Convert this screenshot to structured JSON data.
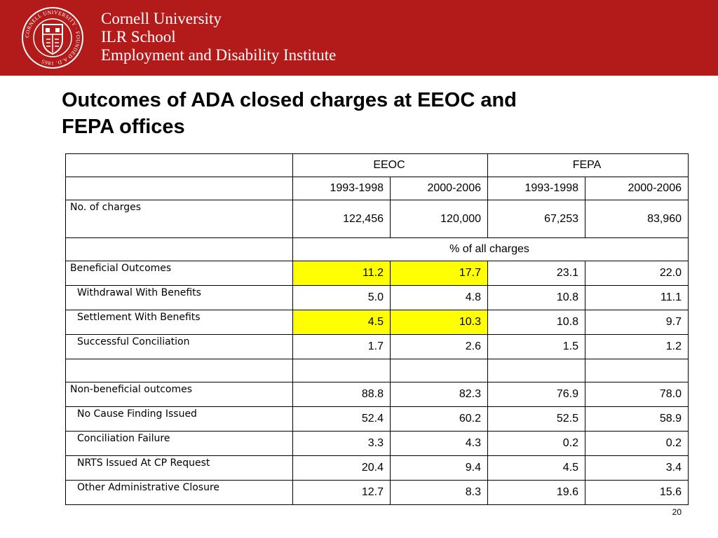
{
  "header": {
    "seal_text": "CORNELL UNIVERSITY · FOUNDED A.D. 1865",
    "org_lines": [
      "Cornell University",
      "ILR School",
      "Employment and Disability Institute"
    ],
    "colors": {
      "banner": "#b31b1b",
      "highlight": "#ffff00"
    }
  },
  "slide": {
    "title_line1": "Outcomes of ADA closed charges at EEOC and",
    "title_line2": "FEPA offices",
    "page_number": "20"
  },
  "table": {
    "groups": [
      "EEOC",
      "FEPA"
    ],
    "periods": [
      "1993-1998",
      "2000-2006",
      "1993-1998",
      "2000-2006"
    ],
    "charges": {
      "label": "No. of charges",
      "values": [
        "122,456",
        "120,000",
        "67,253",
        "83,960"
      ]
    },
    "percent_header": "% of all charges",
    "beneficial": [
      {
        "label": "Beneficial Outcomes",
        "values": [
          "11.2",
          "17.7",
          "23.1",
          "22.0"
        ]
      },
      {
        "label": "Withdrawal With Benefits",
        "values": [
          "5.0",
          "4.8",
          "10.8",
          "11.1"
        ]
      },
      {
        "label": "Settlement With Benefits",
        "values": [
          "4.5",
          "10.3",
          "10.8",
          "9.7"
        ]
      },
      {
        "label": "Successful Conciliation",
        "values": [
          "1.7",
          "2.6",
          "1.5",
          "1.2"
        ]
      }
    ],
    "non_beneficial": [
      {
        "label": "Non-beneficial outcomes",
        "values": [
          "88.8",
          "82.3",
          "76.9",
          "78.0"
        ]
      },
      {
        "label": "No Cause Finding Issued",
        "values": [
          "52.4",
          "60.2",
          "52.5",
          "58.9"
        ]
      },
      {
        "label": "Conciliation Failure",
        "values": [
          "3.3",
          "4.3",
          "0.2",
          "0.2"
        ]
      },
      {
        "label": "NRTS Issued At CP Request",
        "values": [
          "20.4",
          "9.4",
          "4.5",
          "3.4"
        ]
      },
      {
        "label": "Other Administrative Closure",
        "values": [
          "12.7",
          "8.3",
          "19.6",
          "15.6"
        ]
      }
    ]
  }
}
